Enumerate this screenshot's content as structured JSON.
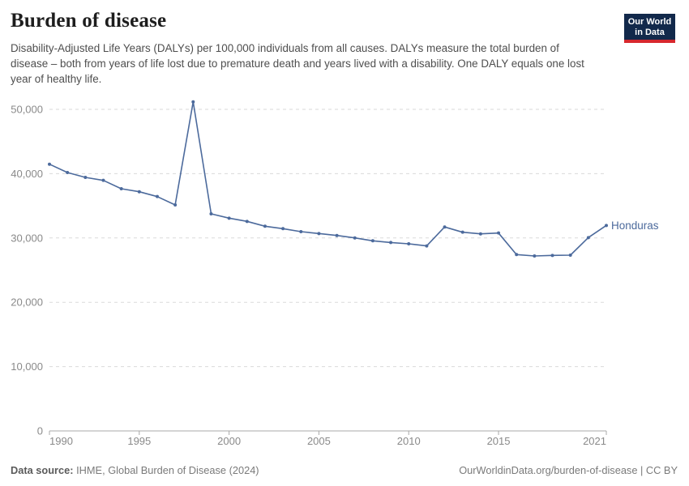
{
  "header": {
    "title": "Burden of disease",
    "subtitle": "Disability-Adjusted Life Years (DALYs) per 100,000 individuals from all causes. DALYs measure the total burden of disease – both from years of life lost due to premature death and years lived with a disability. One DALY equals one lost year of healthy life."
  },
  "logo": {
    "line1": "Our World",
    "line2": "in Data",
    "bg_color": "#12294B",
    "accent_color": "#D7282E"
  },
  "chart_data": {
    "type": "line",
    "title": "Burden of disease",
    "xlabel": "",
    "ylabel": "DALYs per 100,000 individuals",
    "x": [
      1990,
      1991,
      1992,
      1993,
      1994,
      1995,
      1996,
      1997,
      1998,
      1999,
      2000,
      2001,
      2002,
      2003,
      2004,
      2005,
      2006,
      2007,
      2008,
      2009,
      2010,
      2011,
      2012,
      2013,
      2014,
      2015,
      2016,
      2017,
      2018,
      2019,
      2020,
      2021
    ],
    "series": [
      {
        "name": "Honduras",
        "color": "#4C6A9C",
        "values": [
          41470,
          40180,
          39420,
          38960,
          37660,
          37190,
          36440,
          35140,
          51170,
          33750,
          33080,
          32580,
          31830,
          31450,
          30980,
          30690,
          30390,
          30010,
          29560,
          29300,
          29090,
          28760,
          31710,
          30900,
          30640,
          30770,
          27420,
          27200,
          27290,
          27330,
          30060,
          31950
        ]
      }
    ],
    "ylim": [
      0,
      52000
    ],
    "yticks": [
      0,
      10000,
      20000,
      30000,
      40000,
      50000
    ],
    "xticks": [
      1990,
      1995,
      2000,
      2005,
      2010,
      2015,
      2021
    ],
    "grid": "horizontal dashed, zero axis solid",
    "legend": "entity label at right end of line",
    "entity_label": "Honduras",
    "axis_text_color": "#8a8a8a",
    "gridline_color": "#dadada",
    "axis_line_color": "#a8a8a8"
  },
  "footer": {
    "source_label": "Data source:",
    "source_value": "IHME, Global Burden of Disease (2024)",
    "attribution": "OurWorldinData.org/burden-of-disease | CC BY"
  }
}
